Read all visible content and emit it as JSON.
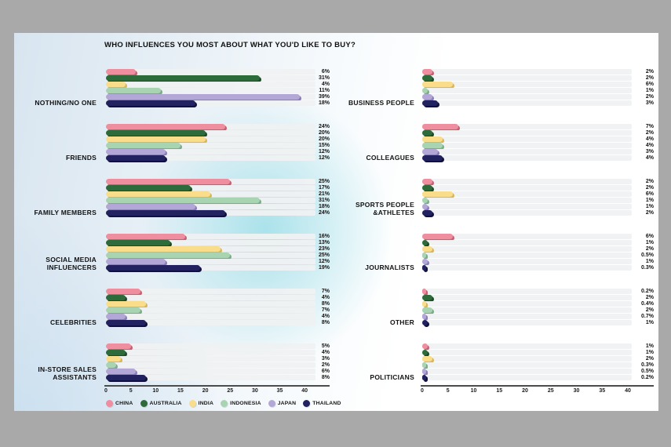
{
  "page": {
    "background_gray": "#a9a9a9",
    "page_tint_blue": "#d8e5f0",
    "page_glow_cyan": "#a3e0e9"
  },
  "legend": {
    "items": [
      {
        "label": "CHINA",
        "color": "#ee8e9f"
      },
      {
        "label": "AUSTRALIA",
        "color": "#2e6b3a"
      },
      {
        "label": "INDIA",
        "color": "#f9dd8b"
      },
      {
        "label": "INDONESIA",
        "color": "#a9d4b2"
      },
      {
        "label": "JAPAN",
        "color": "#b3a7d7"
      },
      {
        "label": "THAILAND",
        "color": "#232260"
      }
    ]
  },
  "chart_data": {
    "type": "bar",
    "orientation": "horizontal",
    "title": "WHO INFLUENCES YOU MOST ABOUT WHAT YOU'D LIKE TO BUY?",
    "unit": "%",
    "series": [
      "CHINA",
      "AUSTRALIA",
      "INDIA",
      "INDONESIA",
      "JAPAN",
      "THAILAND"
    ],
    "series_colors": [
      "#ee8e9f",
      "#2e6b3a",
      "#f9dd8b",
      "#a9d4b2",
      "#b3a7d7",
      "#232260"
    ],
    "series_shadow_colors": [
      "#c75e72",
      "#1c4a26",
      "#d9b55c",
      "#7cab8a",
      "#8b7cba",
      "#10103c"
    ],
    "x_ticks": [
      0,
      5,
      10,
      15,
      20,
      25,
      30,
      35,
      40
    ],
    "xlim": [
      0,
      42
    ],
    "grid": false,
    "legend_position": "bottom-left",
    "columns": [
      {
        "groups": [
          {
            "label": "NOTHING/NO ONE",
            "values": [
              6,
              31,
              4,
              11,
              39,
              18
            ],
            "value_labels": [
              "6%",
              "31%",
              "4%",
              "11%",
              "39%",
              "18%"
            ]
          },
          {
            "label": "FRIENDS",
            "values": [
              24,
              20,
              20,
              15,
              12,
              12
            ],
            "value_labels": [
              "24%",
              "20%",
              "20%",
              "15%",
              "12%",
              "12%"
            ]
          },
          {
            "label": "FAMILY MEMBERS",
            "values": [
              25,
              17,
              21,
              31,
              18,
              24
            ],
            "value_labels": [
              "25%",
              "17%",
              "21%",
              "31%",
              "18%",
              "24%"
            ]
          },
          {
            "label": "SOCIAL MEDIA\nINFLUENCERS",
            "values": [
              16,
              13,
              23,
              25,
              12,
              19
            ],
            "value_labels": [
              "16%",
              "13%",
              "23%",
              "25%",
              "12%",
              "19%"
            ]
          },
          {
            "label": "CELEBRITIES",
            "values": [
              7,
              4,
              8,
              7,
              4,
              8
            ],
            "value_labels": [
              "7%",
              "4%",
              "8%",
              "7%",
              "4%",
              "8%"
            ]
          },
          {
            "label": "IN-STORE SALES\nASSISTANTS",
            "values": [
              5,
              4,
              3,
              2,
              6,
              8
            ],
            "value_labels": [
              "5%",
              "4%",
              "3%",
              "2%",
              "6%",
              "8%"
            ]
          }
        ]
      },
      {
        "groups": [
          {
            "label": "BUSINESS PEOPLE",
            "values": [
              2,
              2,
              6,
              1,
              2,
              3
            ],
            "value_labels": [
              "2%",
              "2%",
              "6%",
              "1%",
              "2%",
              "3%"
            ]
          },
          {
            "label": "COLLEAGUES",
            "values": [
              7,
              2,
              4,
              4,
              3,
              4
            ],
            "value_labels": [
              "7%",
              "2%",
              "4%",
              "4%",
              "3%",
              "4%"
            ]
          },
          {
            "label": "SPORTS PEOPLE\n&ATHLETES",
            "values": [
              2,
              2,
              6,
              1,
              1,
              2
            ],
            "value_labels": [
              "2%",
              "2%",
              "6%",
              "1%",
              "1%",
              "2%"
            ]
          },
          {
            "label": "JOURNALISTS",
            "values": [
              6,
              1,
              2,
              0.5,
              1,
              0.3
            ],
            "value_labels": [
              "6%",
              "1%",
              "2%",
              "0.5%",
              "1%",
              "0.3%"
            ]
          },
          {
            "label": "OTHER",
            "values": [
              0.2,
              2,
              0.4,
              2,
              0.7,
              1
            ],
            "value_labels": [
              "0.2%",
              "2%",
              "0.4%",
              "2%",
              "0.7%",
              "1%"
            ]
          },
          {
            "label": "POLITICIANS",
            "values": [
              1,
              1,
              2,
              0.3,
              0.5,
              0.2
            ],
            "value_labels": [
              "1%",
              "1%",
              "2%",
              "0.3%",
              "0.5%",
              "0.2%"
            ]
          }
        ]
      }
    ]
  }
}
